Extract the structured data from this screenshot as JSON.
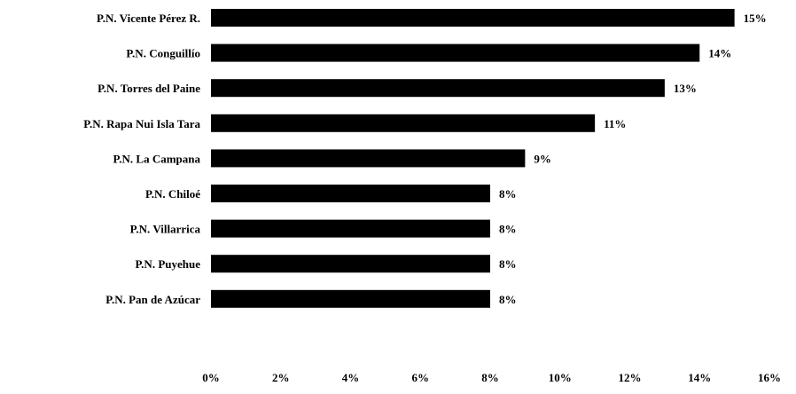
{
  "chart_data": {
    "type": "bar",
    "orientation": "horizontal",
    "categories": [
      "P.N. Vicente Pérez R.",
      "P.N. Conguillío",
      "P.N. Torres del Paine",
      "P.N. Rapa Nui Isla Tara",
      "P.N. La Campana",
      "P.N. Chiloé",
      "P.N. Villarrica",
      "P.N. Puyehue",
      "P.N. Pan de Azúcar"
    ],
    "values": [
      15,
      14,
      13,
      11,
      9,
      8,
      8,
      8,
      8
    ],
    "value_labels": [
      "15%",
      "14%",
      "13%",
      "11%",
      "9%",
      "8%",
      "8%",
      "8%",
      "8%"
    ],
    "xlim": [
      0,
      16
    ],
    "xticks": [
      0,
      2,
      4,
      6,
      8,
      10,
      12,
      14,
      16
    ],
    "xtick_labels": [
      "0%",
      "2%",
      "4%",
      "6%",
      "8%",
      "10%",
      "12%",
      "14%",
      "16%"
    ],
    "grid": false,
    "color": "#000000"
  }
}
